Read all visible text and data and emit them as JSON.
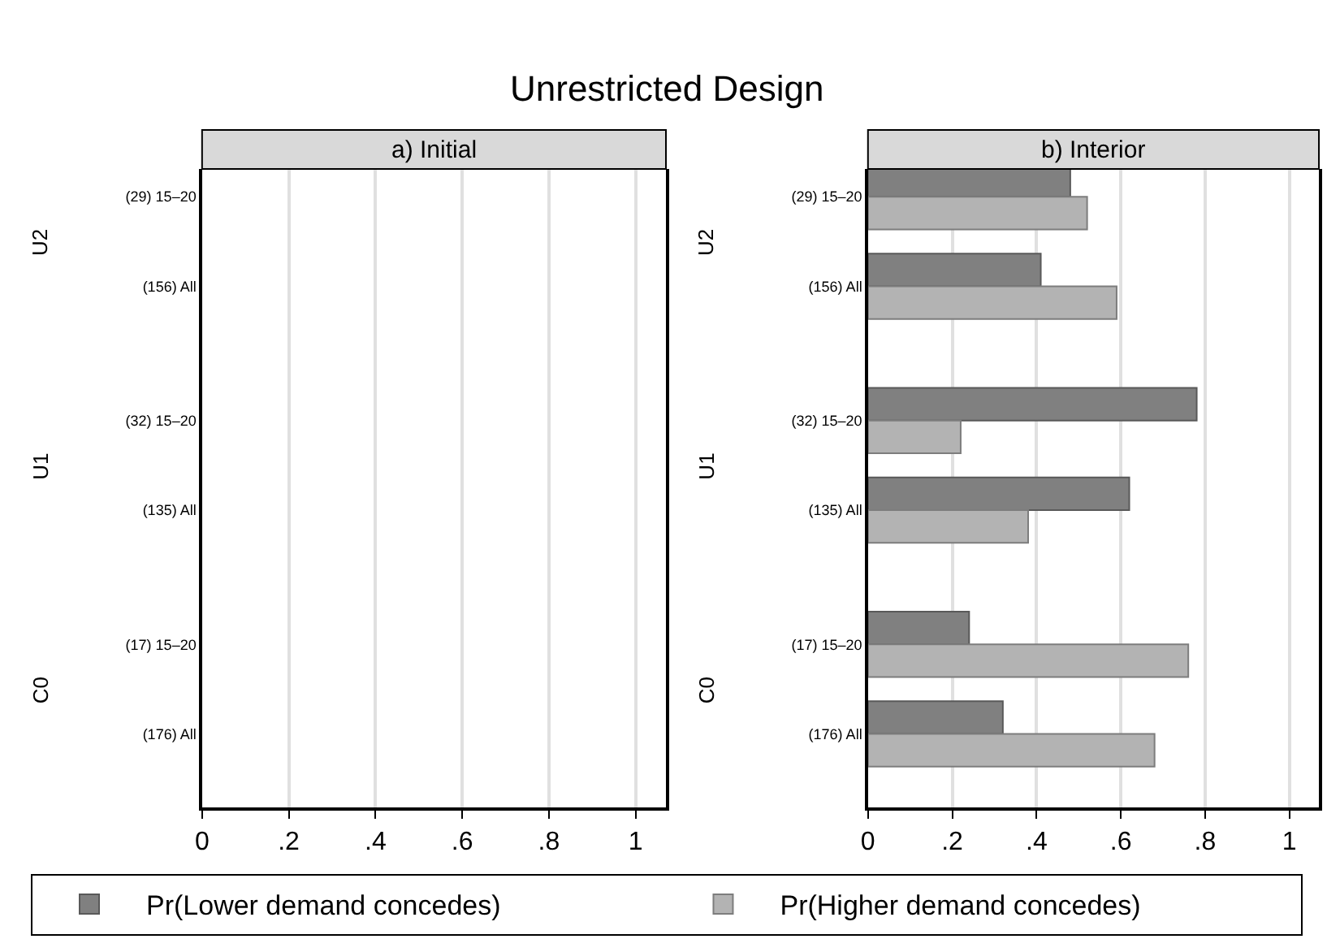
{
  "chart_data": [
    {
      "type": "bar",
      "orientation": "horizontal",
      "title": "Unrestricted Design",
      "subtitle": "a) Initial",
      "categories": [
        "(29) 15–20",
        "(156) All",
        "(32) 15–20",
        "(135) All",
        "(17) 15–20",
        "(176) All"
      ],
      "series": [
        {
          "color": "#808080",
          "values": [
            null,
            null,
            null,
            null,
            null,
            null
          ]
        },
        {
          "color": "#b3b3b3",
          "values": [
            null,
            null,
            null,
            null,
            null,
            null
          ]
        }
      ],
      "annotations": [
        "U2",
        "U1",
        "C0"
      ],
      "xlim": [
        0,
        1.07
      ],
      "xticks": [
        0,
        {
          "value": 0.2,
          "label": ".2"
        },
        {
          "value": 0.4,
          "label": ".4"
        },
        {
          "value": 0.6,
          "label": ".6"
        },
        {
          "value": 0.8,
          "label": ".8"
        },
        1
      ],
      "grid": "x"
    },
    {
      "type": "bar",
      "orientation": "horizontal",
      "subtitle": "b) Interior",
      "categories": [
        "(29) 15–20",
        "(156) All",
        "(32) 15–20",
        "(135) All",
        "(17) 15–20",
        "(176) All"
      ],
      "series": [
        {
          "name": "Pr(Lower demand concedes)",
          "color": "#808080",
          "values": [
            0.48,
            0.41,
            0.78,
            0.62,
            0.24,
            0.32
          ]
        },
        {
          "name": "Pr(Higher demand concedes)",
          "color": "#b3b3b3",
          "values": [
            0.52,
            0.59,
            0.22,
            0.38,
            0.76,
            0.68
          ]
        }
      ],
      "annotations": [
        "U2",
        "U1",
        "C0"
      ],
      "xlim": [
        0,
        1.07
      ],
      "xticks": [
        0,
        {
          "value": 0.2,
          "label": ".2"
        },
        {
          "value": 0.4,
          "label": ".4"
        },
        {
          "value": 0.6,
          "label": ".6"
        },
        {
          "value": 0.8,
          "label": ".8"
        },
        1
      ],
      "grid": "x",
      "legend": "bottom"
    }
  ]
}
